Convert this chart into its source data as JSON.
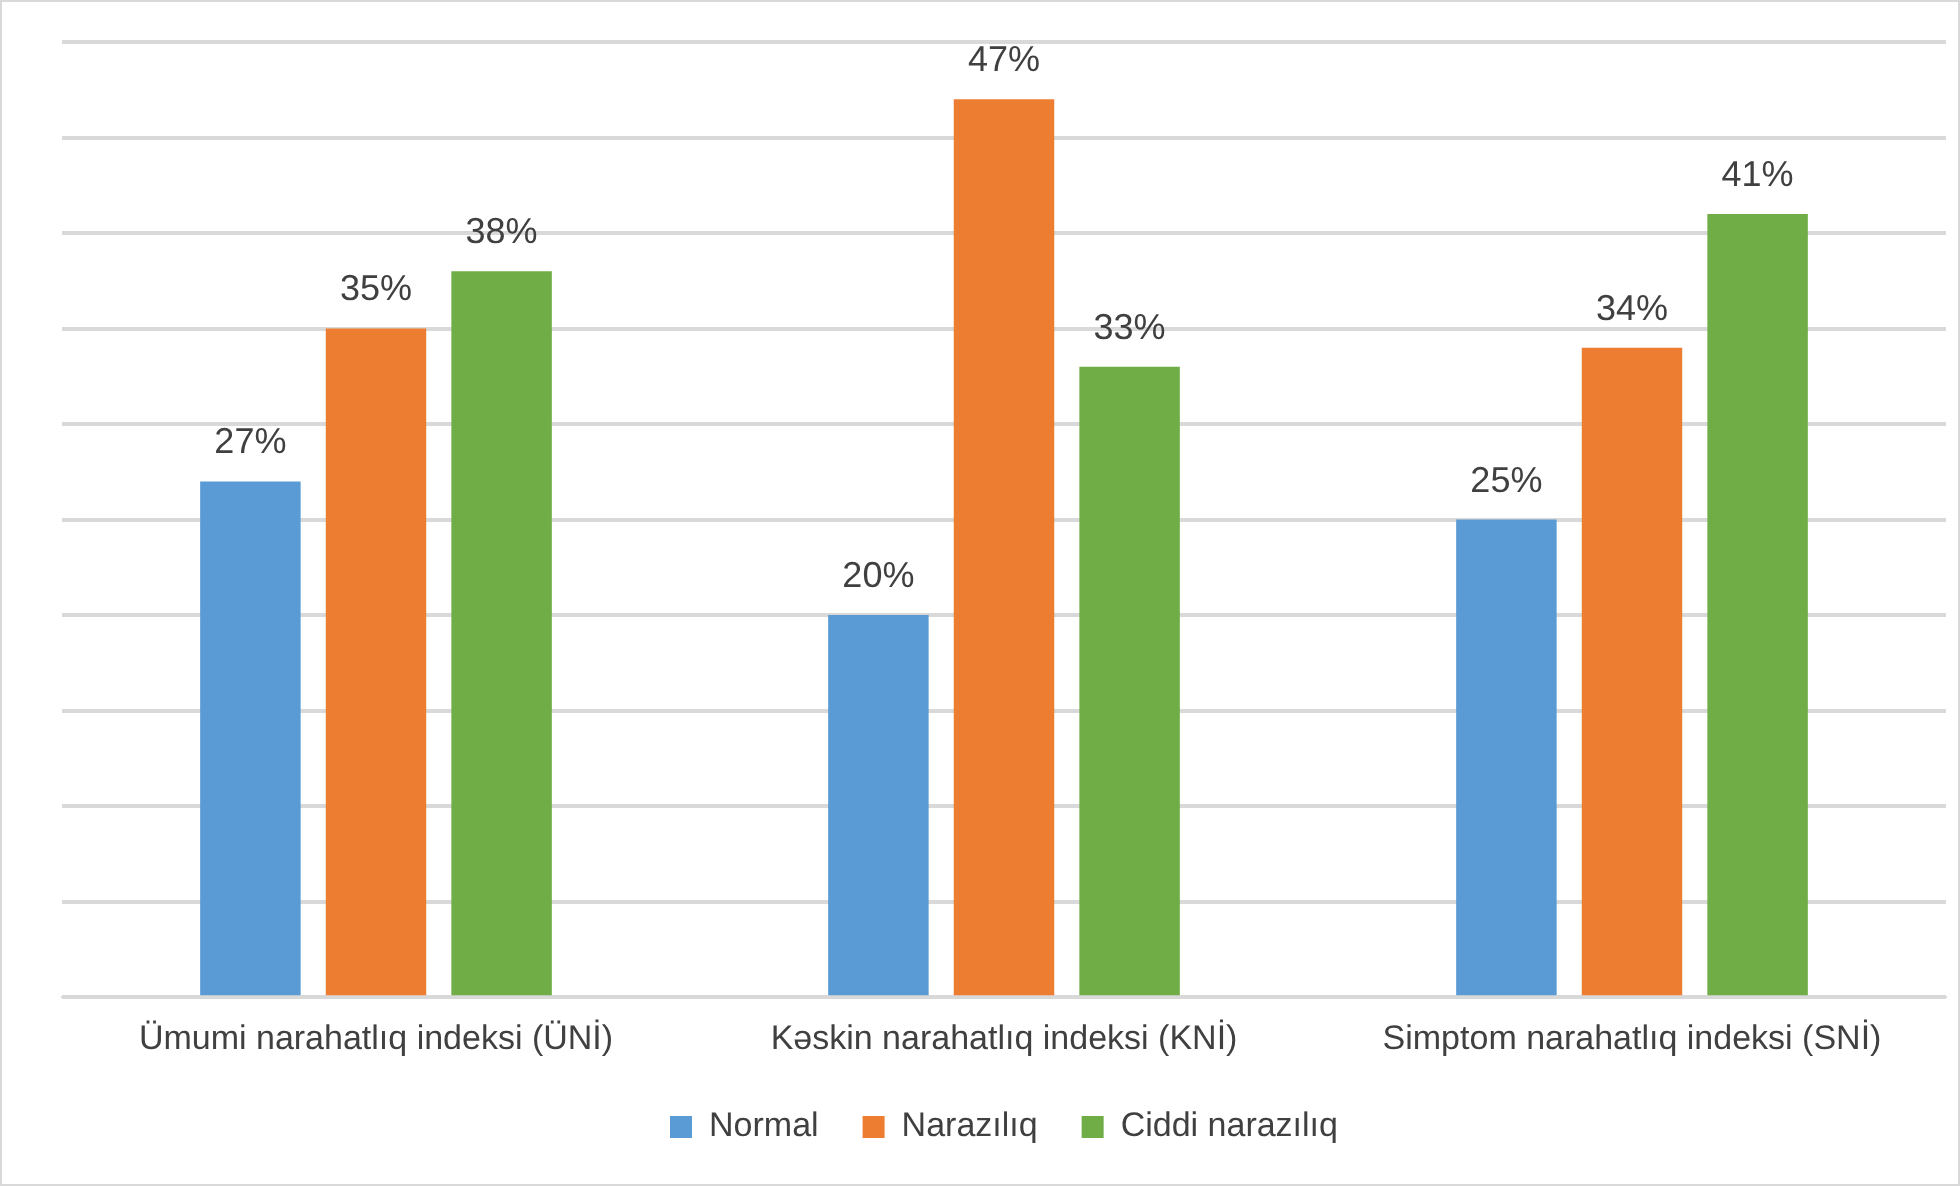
{
  "chart_data": {
    "type": "bar",
    "categories": [
      "Ümumi narahatlıq indeksi (ÜNİ)",
      "Kəskin narahatlıq indeksi (KNİ)",
      "Simptom narahatlıq indeksi (SNİ)"
    ],
    "series": [
      {
        "name": "Normal",
        "color": "#5b9bd5",
        "values": [
          27,
          20,
          25
        ],
        "value_labels": [
          "27%",
          "20%",
          "25%"
        ]
      },
      {
        "name": "Narazılıq",
        "color": "#ed7d31",
        "values": [
          35,
          47,
          34
        ],
        "value_labels": [
          "35%",
          "47%",
          "34%"
        ]
      },
      {
        "name": "Ciddi narazılıq",
        "color": "#70ad47",
        "values": [
          38,
          33,
          41
        ],
        "value_labels": [
          "38%",
          "33%",
          "41%"
        ]
      }
    ],
    "ylim": [
      0,
      50
    ],
    "yticks": [
      {
        "value": 0,
        "label": null
      },
      {
        "value": 5,
        "label": null
      },
      {
        "value": 10,
        "label": null
      },
      {
        "value": 15,
        "label": null
      },
      {
        "value": 20,
        "label": null
      },
      {
        "value": 25,
        "label": null
      },
      {
        "value": 30,
        "label": null
      },
      {
        "value": 35,
        "label": null
      },
      {
        "value": 40,
        "label": null
      },
      {
        "value": 45,
        "label": null
      },
      {
        "value": 50,
        "label": null
      }
    ],
    "tick_labels": "x",
    "grid": "y",
    "legend": "bottom"
  }
}
